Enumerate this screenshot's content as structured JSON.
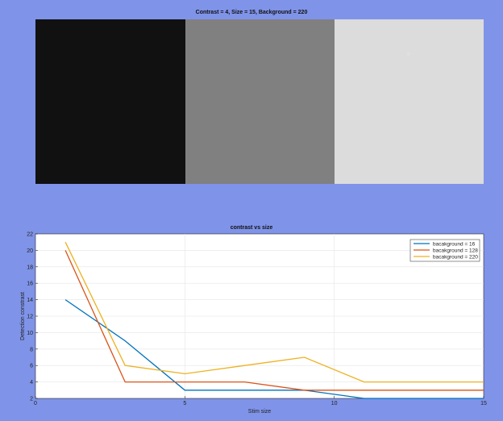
{
  "figure": {
    "background_color": "#7f93e8"
  },
  "stimulus": {
    "title": "Contrast = 4, Size = 15, Background = 220",
    "swatches": [
      {
        "name": "background-16",
        "color": "#111111"
      },
      {
        "name": "background-128",
        "color": "#808080"
      },
      {
        "name": "background-220",
        "color": "#dcdcdc"
      }
    ],
    "stimulus_color": "#e0e0e0"
  },
  "chart_data": {
    "type": "line",
    "title": "contrast vs size",
    "xlabel": "Stim size",
    "ylabel": "Detection constrast",
    "xlim": [
      0,
      15
    ],
    "ylim": [
      2,
      22
    ],
    "xticks": [
      0,
      5,
      10,
      15
    ],
    "yticks": [
      2,
      4,
      6,
      8,
      10,
      12,
      14,
      16,
      18,
      20,
      22
    ],
    "grid": true,
    "legend_position": "top-right",
    "series": [
      {
        "name": "bacakground = 16",
        "color": "#0072bd",
        "x": [
          1,
          3,
          5,
          7,
          9,
          11,
          13,
          15
        ],
        "y": [
          14,
          9,
          3,
          3,
          3,
          2,
          2,
          2
        ]
      },
      {
        "name": "bacakground = 128",
        "color": "#d95319",
        "x": [
          1,
          3,
          5,
          7,
          9,
          11,
          13,
          15
        ],
        "y": [
          20,
          4,
          4,
          4,
          3,
          3,
          3,
          3
        ]
      },
      {
        "name": "bacakground = 220",
        "color": "#edb120",
        "x": [
          1,
          3,
          5,
          7,
          9,
          11,
          13,
          15
        ],
        "y": [
          21,
          6,
          5,
          6,
          7,
          4,
          4,
          4
        ]
      }
    ]
  }
}
